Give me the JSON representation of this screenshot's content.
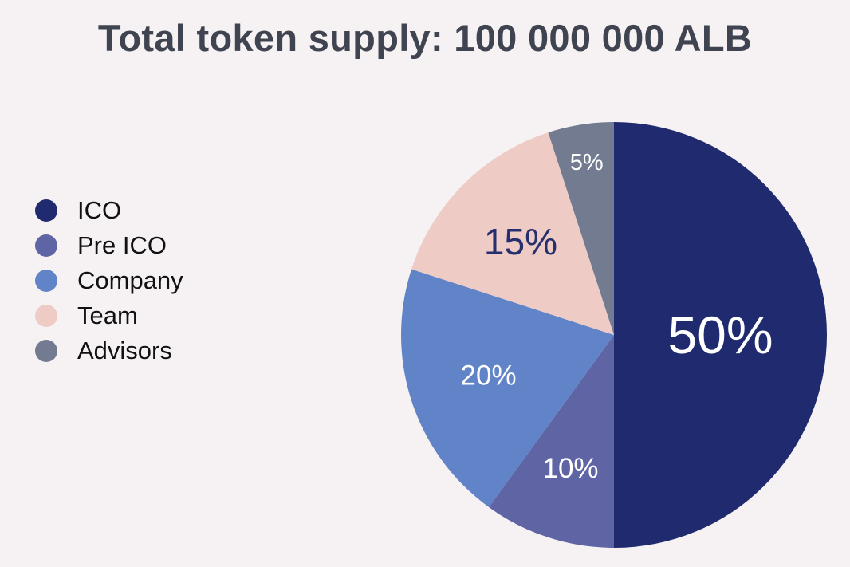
{
  "title": "Total token supply: 100 000 000 ALB",
  "chart_data": {
    "type": "pie",
    "title": "Total token supply: 100 000 000 ALB",
    "legend_position": "left",
    "start_angle_deg": 0,
    "direction": "clockwise",
    "slices": [
      {
        "label": "ICO",
        "value": 50,
        "display": "50%",
        "color": "#1f2b6e",
        "text_color": "#ffffff"
      },
      {
        "label": "Pre ICO",
        "value": 10,
        "display": "10%",
        "color": "#5e64a4",
        "text_color": "#ffffff"
      },
      {
        "label": "Company",
        "value": 20,
        "display": "20%",
        "color": "#6183c7",
        "text_color": "#ffffff"
      },
      {
        "label": "Team",
        "value": 15,
        "display": "15%",
        "color": "#eecbc5",
        "text_color": "#27306f"
      },
      {
        "label": "Advisors",
        "value": 5,
        "display": "5%",
        "color": "#737b91",
        "text_color": "#ffffff"
      }
    ]
  }
}
